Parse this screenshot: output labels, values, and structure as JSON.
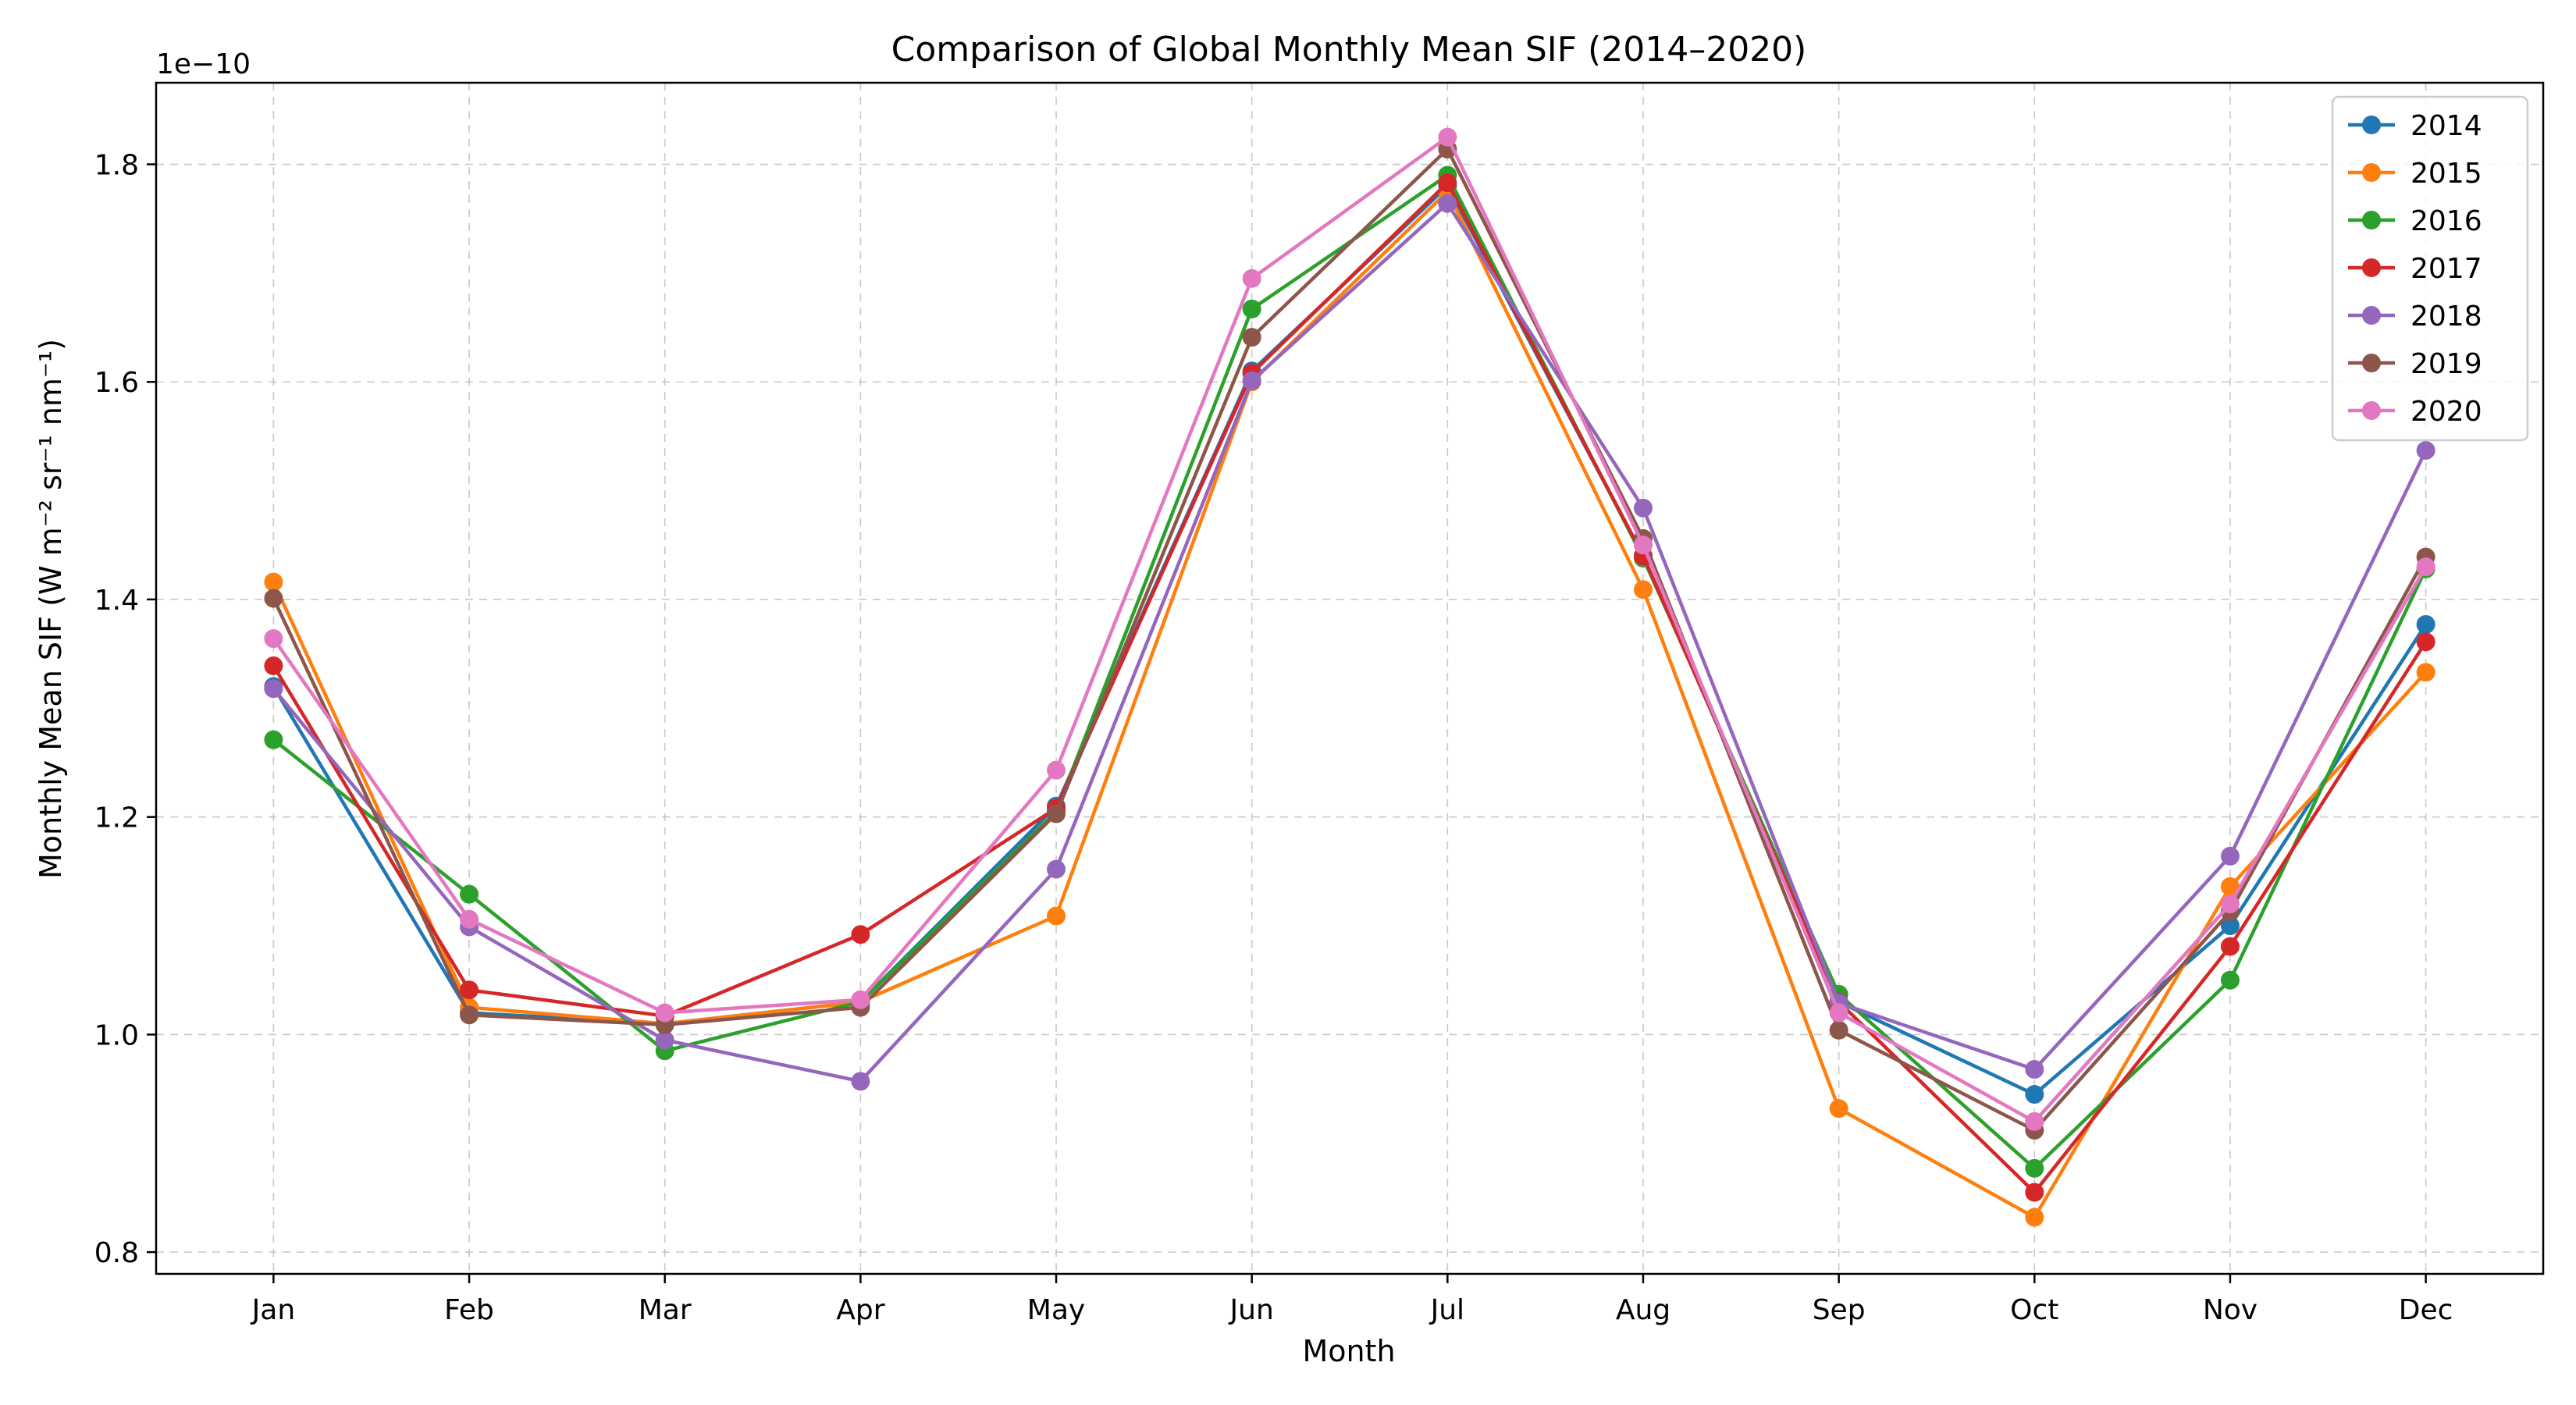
{
  "chart_data": {
    "type": "line",
    "title": "Comparison of Global Monthly Mean SIF (2014–2020)",
    "xlabel": "Month",
    "ylabel": "Monthly Mean SIF (W m⁻² sr⁻¹ nm⁻¹)",
    "y_offset_label": "1e−10",
    "categories": [
      "Jan",
      "Feb",
      "Mar",
      "Apr",
      "May",
      "Jun",
      "Jul",
      "Aug",
      "Sep",
      "Oct",
      "Nov",
      "Dec"
    ],
    "yticks": [
      0.8,
      1.0,
      1.2,
      1.4,
      1.6,
      1.8
    ],
    "ytick_labels": [
      "0.8",
      "1.0",
      "1.2",
      "1.4",
      "1.6",
      "1.8"
    ],
    "ylim": [
      0.78,
      1.875
    ],
    "grid": true,
    "grid_style": "dashed",
    "legend_position": "top-right",
    "marker": "circle",
    "series": [
      {
        "name": "2014",
        "color": "#1f77b4",
        "values": [
          1.32,
          1.02,
          1.01,
          1.03,
          1.21,
          1.61,
          1.78,
          1.44,
          1.03,
          0.945,
          1.1,
          1.377
        ]
      },
      {
        "name": "2015",
        "color": "#ff7f0e",
        "values": [
          1.416,
          1.025,
          1.01,
          1.03,
          1.109,
          1.6,
          1.775,
          1.409,
          0.932,
          0.832,
          1.136,
          1.333
        ]
      },
      {
        "name": "2016",
        "color": "#2ca02c",
        "values": [
          1.271,
          1.129,
          0.985,
          1.03,
          1.205,
          1.667,
          1.79,
          1.438,
          1.037,
          0.877,
          1.05,
          1.428
        ]
      },
      {
        "name": "2017",
        "color": "#d62728",
        "values": [
          1.339,
          1.041,
          1.017,
          1.092,
          1.208,
          1.608,
          1.783,
          1.44,
          1.03,
          0.855,
          1.081,
          1.361
        ]
      },
      {
        "name": "2018",
        "color": "#9467bd",
        "values": [
          1.318,
          1.099,
          0.995,
          0.957,
          1.152,
          1.601,
          1.764,
          1.484,
          1.029,
          0.968,
          1.164,
          1.537
        ]
      },
      {
        "name": "2019",
        "color": "#8c564b",
        "values": [
          1.401,
          1.018,
          1.009,
          1.025,
          1.203,
          1.641,
          1.814,
          1.456,
          1.004,
          0.912,
          1.113,
          1.439
        ]
      },
      {
        "name": "2020",
        "color": "#e377c2",
        "values": [
          1.364,
          1.106,
          1.02,
          1.032,
          1.243,
          1.695,
          1.825,
          1.45,
          1.02,
          0.92,
          1.12,
          1.43
        ]
      }
    ]
  }
}
